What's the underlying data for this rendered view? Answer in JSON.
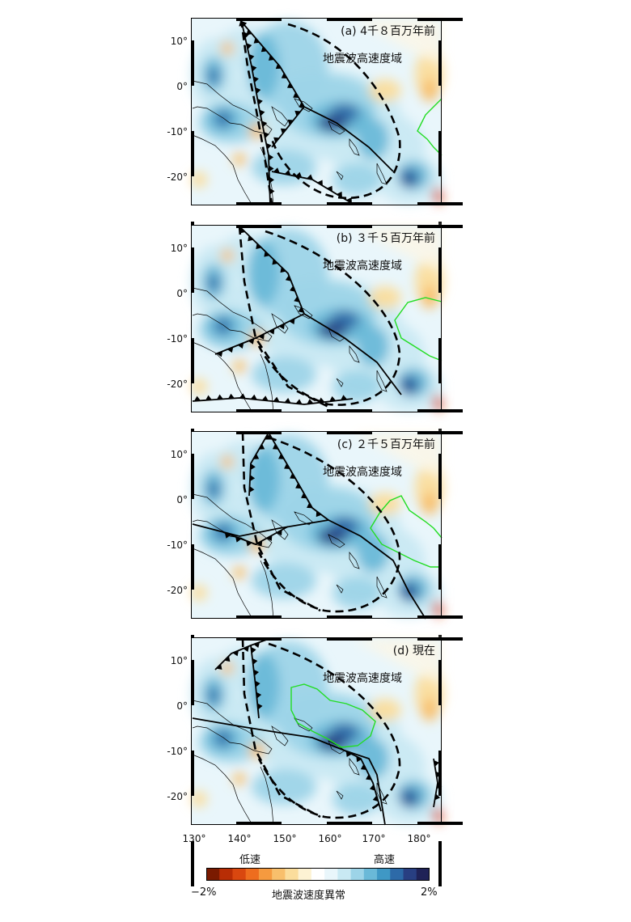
{
  "panels": [
    {
      "label": "(a) 4千８百万年前",
      "zone_label": "地震波高速度域"
    },
    {
      "label": "(b) ３千５百万年前",
      "zone_label": "地震波高速度域"
    },
    {
      "label": "(c) ２千５百万年前",
      "zone_label": "地震波高速度域"
    },
    {
      "label": "(d) 現在",
      "zone_label": "地震波高速度域"
    }
  ],
  "axes": {
    "lat_ticks": [
      "10°",
      "0°",
      "-10°",
      "-20°"
    ],
    "lon_ticks": [
      "130°",
      "140°",
      "150°",
      "160°",
      "170°",
      "180°"
    ]
  },
  "colorbar": {
    "low_label": "低速",
    "high_label": "高速",
    "min_label": "−2%",
    "max_label": "2%",
    "title": "地震波速度異常",
    "colors": [
      "#7a1a00",
      "#b82d05",
      "#d9470f",
      "#ee6d1e",
      "#f59a3f",
      "#f8bf6c",
      "#fbdd9c",
      "#fdf2d3",
      "#ffffff",
      "#e9f6fb",
      "#c9e9f3",
      "#9dd4e8",
      "#6ab9d8",
      "#3f98c5",
      "#2d6aa8",
      "#283f82",
      "#1f2257"
    ]
  },
  "colors": {
    "high_velocity": "#3f98c5",
    "low_velocity": "#f8bf6c",
    "plate_boundary": "#000000",
    "plateau_outline": "#22dd22"
  }
}
